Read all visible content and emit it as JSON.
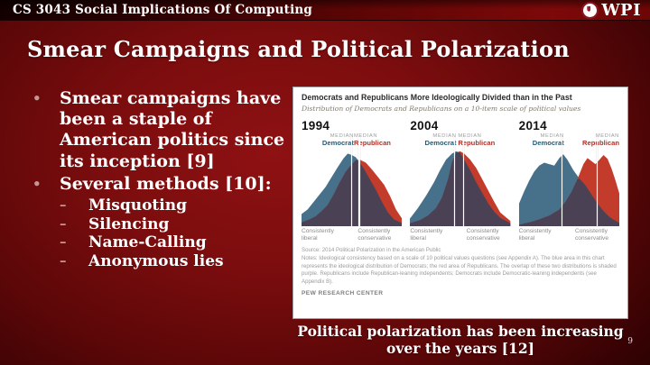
{
  "header": {
    "course_title": "CS 3043 Social Implications Of Computing",
    "logo_text": "WPI"
  },
  "slide": {
    "title": "Smear Campaigns and Political Polarization",
    "bullets": [
      {
        "level": 1,
        "marker": "•",
        "text": "Smear campaigns have been a staple of American politics since its inception [9]"
      },
      {
        "level": 1,
        "marker": "•",
        "text": "Several methods [10]:"
      },
      {
        "level": 2,
        "marker": "–",
        "text": "Misquoting"
      },
      {
        "level": 2,
        "marker": "–",
        "text": "Silencing"
      },
      {
        "level": 2,
        "marker": "–",
        "text": "Name-Calling"
      },
      {
        "level": 2,
        "marker": "–",
        "text": "Anonymous lies"
      }
    ],
    "caption": "Political polarization has been increasing over the years [12]",
    "page_number": "9"
  },
  "chart_data": {
    "type": "area",
    "title": "Democrats and Republicans More Ideologically Divided than in the Past",
    "subtitle": "Distribution of Democrats and Republicans on a 10-item scale of political values",
    "median_label": "MEDIAN",
    "democrat_label": "Democrat",
    "republican_label": "Republican",
    "axis_left": "Consistently liberal",
    "axis_right": "Consistently conservative",
    "colors": {
      "democrat": "#47708A",
      "republican": "#C23B2B",
      "overlap": "#4B4155",
      "median_line": "#FFFFFF",
      "democrat_text": "#235A77",
      "republican_text": "#B03028"
    },
    "x_scale": "0 = consistently liberal, 100 = consistently conservative (10-item political values scale)",
    "panels": [
      {
        "year": "1994",
        "median_democrat_pct": 50,
        "median_republican_pct": 57.5,
        "series": [
          {
            "name": "Democrat",
            "points": [
              [
                0,
                16
              ],
              [
                6,
                22
              ],
              [
                12,
                32
              ],
              [
                18,
                42
              ],
              [
                24,
                52
              ],
              [
                30,
                65
              ],
              [
                36,
                78
              ],
              [
                42,
                90
              ],
              [
                46,
                96
              ],
              [
                50,
                94
              ],
              [
                54,
                91
              ],
              [
                58,
                84
              ],
              [
                62,
                76
              ],
              [
                68,
                62
              ],
              [
                74,
                48
              ],
              [
                80,
                32
              ],
              [
                86,
                18
              ],
              [
                92,
                9
              ],
              [
                100,
                4
              ]
            ]
          },
          {
            "name": "Republican",
            "points": [
              [
                0,
                5
              ],
              [
                8,
                9
              ],
              [
                14,
                13
              ],
              [
                20,
                20
              ],
              [
                26,
                28
              ],
              [
                32,
                42
              ],
              [
                38,
                58
              ],
              [
                44,
                72
              ],
              [
                50,
                82
              ],
              [
                54,
                87
              ],
              [
                58,
                88
              ],
              [
                64,
                84
              ],
              [
                70,
                75
              ],
              [
                76,
                65
              ],
              [
                82,
                55
              ],
              [
                88,
                40
              ],
              [
                94,
                22
              ],
              [
                100,
                10
              ]
            ]
          }
        ]
      },
      {
        "year": "2004",
        "median_democrat_pct": 44,
        "median_republican_pct": 53,
        "series": [
          {
            "name": "Democrat",
            "points": [
              [
                0,
                10
              ],
              [
                8,
                24
              ],
              [
                16,
                40
              ],
              [
                24,
                58
              ],
              [
                30,
                74
              ],
              [
                36,
                88
              ],
              [
                42,
                96
              ],
              [
                46,
                99
              ],
              [
                50,
                97
              ],
              [
                54,
                88
              ],
              [
                60,
                74
              ],
              [
                66,
                58
              ],
              [
                72,
                44
              ],
              [
                78,
                30
              ],
              [
                84,
                19
              ],
              [
                90,
                11
              ],
              [
                100,
                4
              ]
            ]
          },
          {
            "name": "Republican",
            "points": [
              [
                0,
                4
              ],
              [
                10,
                8
              ],
              [
                18,
                14
              ],
              [
                26,
                24
              ],
              [
                32,
                38
              ],
              [
                38,
                62
              ],
              [
                42,
                85
              ],
              [
                46,
                97
              ],
              [
                50,
                99
              ],
              [
                54,
                96
              ],
              [
                60,
                88
              ],
              [
                66,
                77
              ],
              [
                72,
                62
              ],
              [
                78,
                47
              ],
              [
                84,
                32
              ],
              [
                90,
                18
              ],
              [
                100,
                7
              ]
            ]
          }
        ]
      },
      {
        "year": "2014",
        "median_democrat_pct": 43,
        "median_republican_pct": 78,
        "series": [
          {
            "name": "Democrat",
            "points": [
              [
                0,
                30
              ],
              [
                5,
                46
              ],
              [
                10,
                60
              ],
              [
                15,
                72
              ],
              [
                20,
                80
              ],
              [
                25,
                84
              ],
              [
                30,
                82
              ],
              [
                35,
                80
              ],
              [
                40,
                90
              ],
              [
                44,
                95
              ],
              [
                48,
                88
              ],
              [
                54,
                74
              ],
              [
                60,
                63
              ],
              [
                66,
                54
              ],
              [
                72,
                42
              ],
              [
                78,
                30
              ],
              [
                84,
                20
              ],
              [
                90,
                12
              ],
              [
                100,
                4
              ]
            ]
          },
          {
            "name": "Republican",
            "points": [
              [
                0,
                2
              ],
              [
                10,
                5
              ],
              [
                20,
                9
              ],
              [
                30,
                14
              ],
              [
                40,
                22
              ],
              [
                46,
                32
              ],
              [
                52,
                45
              ],
              [
                58,
                62
              ],
              [
                64,
                82
              ],
              [
                68,
                90
              ],
              [
                72,
                86
              ],
              [
                76,
                82
              ],
              [
                80,
                88
              ],
              [
                84,
                94
              ],
              [
                88,
                89
              ],
              [
                92,
                76
              ],
              [
                96,
                60
              ],
              [
                100,
                42
              ]
            ]
          }
        ]
      }
    ],
    "source": "Source: 2014 Political Polarization in the American Public",
    "notes": "Notes: Ideological consistency based on a scale of 10 political values questions (see Appendix A). The blue area in this chart represents the ideological distribution of Democrats; the red area of Republicans. The overlap of these two distributions is shaded purple. Republicans include Republican-leaning independents; Democrats include Democratic-leaning independents (see Appendix B).",
    "footer": "PEW RESEARCH CENTER"
  }
}
